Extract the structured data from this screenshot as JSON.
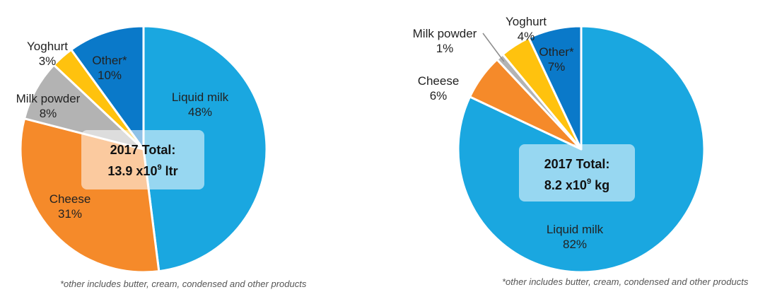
{
  "chart_data": [
    {
      "type": "pie",
      "total_line1": "2017 Total:",
      "total_line2_prefix": "13.9 x10",
      "total_line2_sup": "9",
      "total_line2_suffix": " ltr",
      "categories": [
        "Liquid milk",
        "Cheese",
        "Milk powder",
        "Yoghurt",
        "Other*"
      ],
      "values": [
        48,
        31,
        8,
        3,
        10
      ],
      "value_labels": [
        "48%",
        "31%",
        "8%",
        "3%",
        "10%"
      ],
      "colors": [
        "#1aa7e0",
        "#f58a2a",
        "#b3b3b3",
        "#ffc20e",
        "#0a79c9"
      ],
      "footnote": "*other includes butter, cream, condensed and other products"
    },
    {
      "type": "pie",
      "total_line1": "2017 Total:",
      "total_line2_prefix": "8.2 x10",
      "total_line2_sup": "9",
      "total_line2_suffix": " kg",
      "categories": [
        "Liquid milk",
        "Cheese",
        "Milk powder",
        "Yoghurt",
        "Other*"
      ],
      "values": [
        82,
        6,
        1,
        4,
        7
      ],
      "value_labels": [
        "82%",
        "6%",
        "1%",
        "4%",
        "7%"
      ],
      "colors": [
        "#1aa7e0",
        "#f58a2a",
        "#b3b3b3",
        "#ffc20e",
        "#0a79c9"
      ],
      "footnote": "*other includes butter, cream, condensed and other products"
    }
  ]
}
